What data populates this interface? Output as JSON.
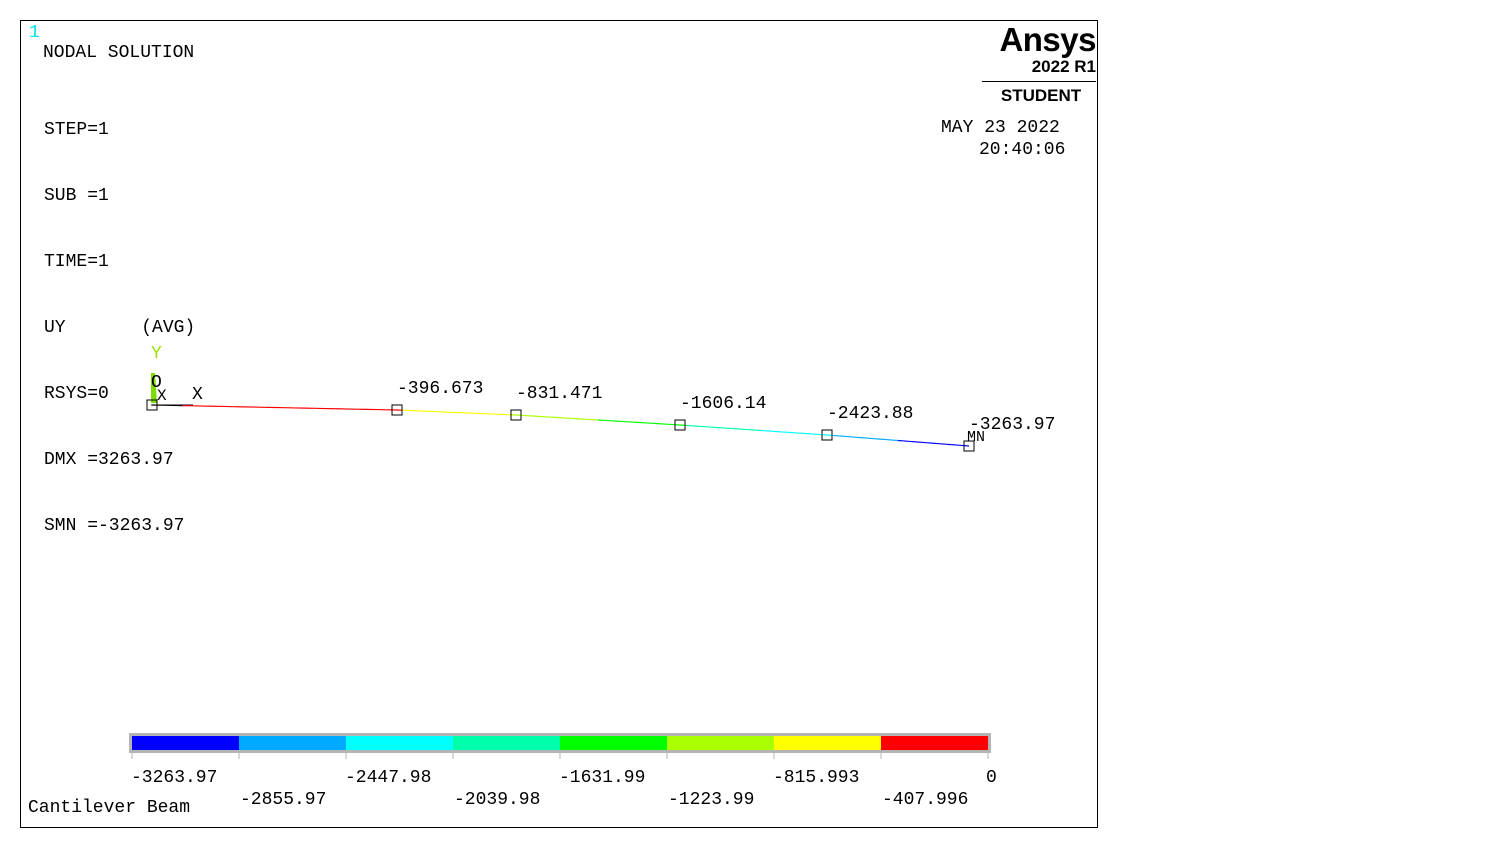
{
  "window_number": "1",
  "title": "NODAL SOLUTION",
  "info_lines": [
    "STEP=1",
    "SUB =1",
    "TIME=1",
    "UY       (AVG)",
    "RSYS=0",
    "DMX =3263.97",
    "SMN =-3263.97"
  ],
  "brand": {
    "logo": "Ansys",
    "version": "2022 R1",
    "edition": "STUDENT"
  },
  "date": "MAY 23 2022",
  "time": "20:40:06",
  "triad": {
    "y_label": "Y",
    "z_label": "O",
    "x_label": "X",
    "node_label": "X"
  },
  "min_marker": "MN",
  "beam_nodes": [
    {
      "value": 0,
      "label": ""
    },
    {
      "value": -396.673,
      "label": "-396.673"
    },
    {
      "value": -831.471,
      "label": "-831.471"
    },
    {
      "value": -1606.14,
      "label": "-1606.14"
    },
    {
      "value": -2423.88,
      "label": "-2423.88"
    },
    {
      "value": -3263.97,
      "label": "-3263.97"
    }
  ],
  "legend": {
    "colors": [
      "#0000ff",
      "#00aaff",
      "#00ffff",
      "#00ffaa",
      "#00ff00",
      "#aaff00",
      "#ffff00",
      "#ff0000"
    ],
    "labels_top": [
      "-3263.97",
      "-2447.98",
      "-1631.99",
      "-815.993",
      "0"
    ],
    "labels_bottom": [
      "-2855.97",
      "-2039.98",
      "-1223.99",
      "-407.996"
    ]
  },
  "footer": "Cantilever Beam"
}
